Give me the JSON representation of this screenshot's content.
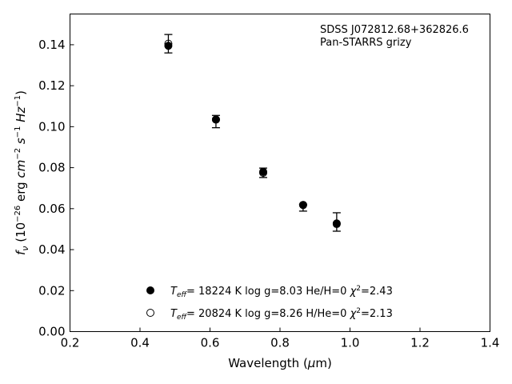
{
  "chart_data": {
    "type": "scatter",
    "annotation": [
      "SDSS J072812.68+362826.6",
      "Pan-STARRS grizy"
    ],
    "xlabel": "Wavelength (μm)",
    "ylabel": "f_ν (10^-26 erg cm^-2 s^-1 Hz^-1)",
    "xlim": [
      0.2,
      1.4
    ],
    "ylim": [
      0.0,
      0.155
    ],
    "xticks": [
      0.2,
      0.4,
      0.6,
      0.8,
      1.0,
      1.2,
      1.4
    ],
    "yticks": [
      0.0,
      0.02,
      0.04,
      0.06,
      0.08,
      0.1,
      0.12,
      0.14
    ],
    "xtick_labels": [
      "0.2",
      "0.4",
      "0.6",
      "0.8",
      "1.0",
      "1.2",
      "1.4"
    ],
    "ytick_labels": [
      "0.00",
      "0.02",
      "0.04",
      "0.06",
      "0.08",
      "0.10",
      "0.12",
      "0.14"
    ],
    "grid": false,
    "legend_position": "lower-center",
    "observed": {
      "x": [
        0.481,
        0.617,
        0.752,
        0.866,
        0.962
      ],
      "y": [
        0.1405,
        0.1025,
        0.0775,
        0.0605,
        0.0535
      ],
      "err": [
        0.0045,
        0.003,
        0.0023,
        0.0017,
        0.0045
      ]
    },
    "series": [
      {
        "name": "Teff= 18224 K  log g=8.03  He/H=0  χ²=2.43",
        "marker": "filled-circle",
        "x": [
          0.481,
          0.617,
          0.752,
          0.866,
          0.962
        ],
        "y": [
          0.1395,
          0.1035,
          0.078,
          0.0618,
          0.0525
        ]
      },
      {
        "name": "Teff= 20824 K  log g=8.26  H/He=0  χ²=2.13",
        "marker": "open-circle",
        "x": [
          0.481,
          0.617,
          0.752,
          0.866,
          0.962
        ],
        "y": [
          0.1405,
          0.1035,
          0.0775,
          0.0618,
          0.0528
        ]
      }
    ]
  }
}
